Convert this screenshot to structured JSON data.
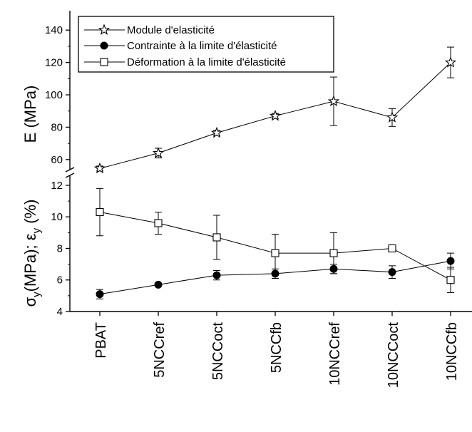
{
  "chart_data": {
    "type": "line",
    "categories": [
      "PBAT",
      "5NCCref",
      "5NCCoct",
      "5NCCfb",
      "10NCCref",
      "10NCCoct",
      "10NCCfb"
    ],
    "axis_break": true,
    "panels": [
      {
        "ylabel": "E (MPa)",
        "ylim": [
          52,
          152
        ],
        "yticks": [
          60,
          80,
          100,
          120,
          140
        ],
        "series": [
          {
            "name": "Module d'elasticité",
            "marker": "star-open",
            "values": [
              54.5,
              64,
              76.5,
              87,
              96,
              86,
              120
            ],
            "errors": [
              1.5,
              3,
              1.5,
              1.5,
              15,
              5.5,
              9.5
            ]
          }
        ]
      },
      {
        "ylabel": "σ (MPa); ε (%)",
        "ylabel_parts": {
          "sigma": "σ",
          "sub": "y",
          "mpa": "(MPa); ",
          "eps": "ε",
          "pct": " (%)"
        },
        "ylim": [
          4,
          12.9
        ],
        "yticks": [
          4,
          6,
          8,
          10,
          12
        ],
        "series": [
          {
            "name": "Contrainte à la limite d'élasticité",
            "marker": "circle-filled",
            "values": [
              5.1,
              5.7,
              6.3,
              6.4,
              6.7,
              6.5,
              7.2
            ],
            "errors": [
              0.3,
              0.1,
              0.3,
              0.3,
              0.3,
              0.4,
              0.5
            ]
          },
          {
            "name": "Déformation à la limite d'élasticité",
            "marker": "square-open",
            "values": [
              10.3,
              9.6,
              8.7,
              7.7,
              7.7,
              8.0,
              6.0
            ],
            "errors": [
              1.5,
              0.7,
              1.4,
              1.2,
              1.3,
              0.0,
              0.8
            ]
          }
        ]
      }
    ],
    "legend_position": "top-left"
  }
}
